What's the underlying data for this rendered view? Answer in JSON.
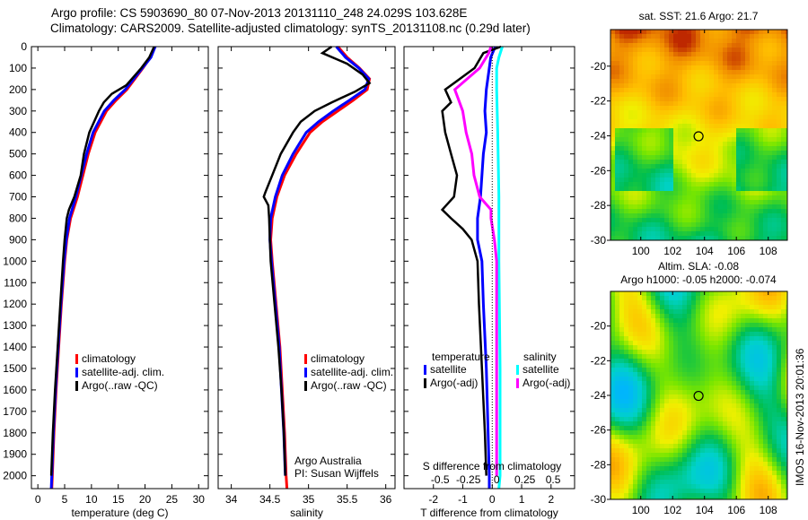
{
  "header": {
    "line1": "Argo profile: CS 5903690_80 07-Nov-2013 20131110_248 24.029S 103.628E",
    "line2": "Climatology: CARS2009. Satellite-adjusted climatology: synTS_20131108.nc (0.29d later)"
  },
  "stamp": "IMOS 16-Nov-2013 20:01:36",
  "colors": {
    "climatology": "#ff0000",
    "satellite": "#0000ff",
    "argo": "#000000",
    "sal_satellite": "#00ffff",
    "sal_argo": "#ff00ff"
  },
  "chart_data": [
    {
      "type": "line",
      "xlabel": "temperature (deg C)",
      "ylabel": "",
      "ylim": [
        0,
        2060
      ],
      "xlim": [
        -1.2,
        31.8
      ],
      "yticks": [
        0,
        100,
        200,
        300,
        400,
        500,
        600,
        700,
        800,
        900,
        1000,
        1100,
        1200,
        1300,
        1400,
        1500,
        1600,
        1700,
        1800,
        1900,
        2000
      ],
      "xticks": [
        0,
        5,
        10,
        15,
        20,
        25,
        30
      ],
      "legend": [
        "climatology",
        "satellite-adj. clim.",
        "Argo(..raw -QC)"
      ],
      "series": [
        {
          "name": "climatology",
          "color": "#ff0000",
          "points": [
            [
              0,
              21.8
            ],
            [
              50,
              21
            ],
            [
              100,
              19.6
            ],
            [
              200,
              16.6
            ],
            [
              250,
              14.6
            ],
            [
              300,
              12.8
            ],
            [
              400,
              10.7
            ],
            [
              500,
              9.4
            ],
            [
              600,
              8.4
            ],
            [
              700,
              7.4
            ],
            [
              800,
              6.1
            ],
            [
              900,
              5.4
            ],
            [
              1000,
              5.0
            ],
            [
              1200,
              4.4
            ],
            [
              1400,
              3.9
            ],
            [
              1600,
              3.4
            ],
            [
              1800,
              3.0
            ],
            [
              2000,
              2.7
            ],
            [
              2060,
              2.6
            ]
          ]
        },
        {
          "name": "satellite-adj. clim.",
          "color": "#0000ff",
          "points": [
            [
              0,
              21.9
            ],
            [
              50,
              21.1
            ],
            [
              100,
              19.5
            ],
            [
              200,
              16.3
            ],
            [
              250,
              14.2
            ],
            [
              300,
              12.4
            ],
            [
              400,
              10.3
            ],
            [
              500,
              9.1
            ],
            [
              600,
              8.1
            ],
            [
              700,
              7.1
            ],
            [
              800,
              5.9
            ],
            [
              900,
              5.3
            ],
            [
              1000,
              4.9
            ],
            [
              1200,
              4.3
            ],
            [
              1400,
              3.8
            ],
            [
              1600,
              3.3
            ],
            [
              1800,
              2.9
            ],
            [
              2000,
              2.6
            ],
            [
              2060,
              2.5
            ]
          ]
        },
        {
          "name": "Argo(..raw -QC)",
          "color": "#000000",
          "points": [
            [
              0,
              21.7
            ],
            [
              50,
              20.8
            ],
            [
              100,
              19.3
            ],
            [
              180,
              16.5
            ],
            [
              220,
              13.8
            ],
            [
              260,
              12.3
            ],
            [
              300,
              11.4
            ],
            [
              400,
              9.6
            ],
            [
              500,
              8.6
            ],
            [
              600,
              8.0
            ],
            [
              700,
              6.8
            ],
            [
              760,
              5.8
            ],
            [
              800,
              5.4
            ],
            [
              900,
              5.0
            ],
            [
              1000,
              4.7
            ],
            [
              1200,
              4.2
            ],
            [
              1400,
              3.7
            ],
            [
              1600,
              3.2
            ],
            [
              1800,
              2.8
            ],
            [
              2000,
              2.5
            ]
          ]
        }
      ]
    },
    {
      "type": "line",
      "xlabel": "salinity",
      "ylim": [
        0,
        2060
      ],
      "xlim": [
        33.83,
        36.12
      ],
      "xticks": [
        34,
        34.5,
        35,
        35.5,
        36
      ],
      "legend": [
        "climatology",
        "satellite-adj. clim.",
        "Argo(..raw -QC)"
      ],
      "annotation": [
        "Argo Australia",
        "PI: Susan Wijffels"
      ],
      "series": [
        {
          "name": "climatology",
          "color": "#ff0000",
          "points": [
            [
              0,
              35.38
            ],
            [
              50,
              35.5
            ],
            [
              100,
              35.66
            ],
            [
              150,
              35.79
            ],
            [
              200,
              35.76
            ],
            [
              250,
              35.58
            ],
            [
              300,
              35.38
            ],
            [
              350,
              35.18
            ],
            [
              400,
              35.02
            ],
            [
              500,
              34.84
            ],
            [
              600,
              34.69
            ],
            [
              700,
              34.59
            ],
            [
              800,
              34.53
            ],
            [
              900,
              34.51
            ],
            [
              1000,
              34.53
            ],
            [
              1200,
              34.58
            ],
            [
              1400,
              34.63
            ],
            [
              1600,
              34.66
            ],
            [
              1800,
              34.69
            ],
            [
              2000,
              34.71
            ],
            [
              2060,
              34.72
            ]
          ]
        },
        {
          "name": "satellite-adj. clim.",
          "color": "#0000ff",
          "points": [
            [
              0,
              35.36
            ],
            [
              50,
              35.48
            ],
            [
              100,
              35.65
            ],
            [
              150,
              35.78
            ],
            [
              200,
              35.73
            ],
            [
              250,
              35.53
            ],
            [
              300,
              35.32
            ],
            [
              350,
              35.13
            ],
            [
              400,
              34.97
            ],
            [
              500,
              34.8
            ],
            [
              600,
              34.66
            ],
            [
              700,
              34.57
            ],
            [
              800,
              34.51
            ],
            [
              900,
              34.5
            ],
            [
              1000,
              34.52
            ],
            [
              1200,
              34.57
            ],
            [
              1400,
              34.62
            ],
            [
              1600,
              34.65
            ],
            [
              1800,
              34.68
            ],
            [
              2000,
              34.7
            ]
          ]
        },
        {
          "name": "Argo(..raw -QC)",
          "color": "#000000",
          "points": [
            [
              0,
              35.3
            ],
            [
              30,
              35.18
            ],
            [
              80,
              35.5
            ],
            [
              130,
              35.7
            ],
            [
              170,
              35.79
            ],
            [
              210,
              35.6
            ],
            [
              260,
              35.3
            ],
            [
              300,
              35.08
            ],
            [
              350,
              34.9
            ],
            [
              400,
              34.8
            ],
            [
              500,
              34.64
            ],
            [
              600,
              34.53
            ],
            [
              680,
              34.44
            ],
            [
              700,
              34.42
            ],
            [
              740,
              34.48
            ],
            [
              800,
              34.49
            ],
            [
              900,
              34.5
            ],
            [
              1000,
              34.51
            ],
            [
              1200,
              34.56
            ],
            [
              1400,
              34.61
            ],
            [
              1600,
              34.65
            ],
            [
              1800,
              34.68
            ],
            [
              2000,
              34.7
            ]
          ]
        }
      ]
    },
    {
      "type": "line",
      "xlabel": "T difference from climatology",
      "x2label": "S difference from climatology",
      "ylim": [
        0,
        2060
      ],
      "xlim": [
        -3,
        2.8
      ],
      "x2lim": [
        -0.82,
        0.69
      ],
      "xticks": [
        -2,
        -1,
        0,
        1,
        2
      ],
      "x2ticks": [
        -0.5,
        -0.25,
        0,
        0.25,
        0.5
      ],
      "legend": {
        "temperature": [
          "satellite",
          "Argo(-adj)"
        ],
        "salinity": [
          "satellite",
          "Argo(-adj)"
        ],
        "temperature_title": "temperature",
        "salinity_title": "salinity"
      },
      "series": [
        {
          "name": "T satellite",
          "axis": "T",
          "color": "#0000ff",
          "points": [
            [
              0,
              0.1
            ],
            [
              50,
              -0.05
            ],
            [
              100,
              -0.1
            ],
            [
              200,
              -0.2
            ],
            [
              300,
              -0.25
            ],
            [
              400,
              -0.2
            ],
            [
              500,
              -0.3
            ],
            [
              600,
              -0.35
            ],
            [
              700,
              -0.4
            ],
            [
              800,
              -0.5
            ],
            [
              900,
              -0.5
            ],
            [
              1000,
              -0.35
            ],
            [
              1200,
              -0.3
            ],
            [
              1500,
              -0.2
            ],
            [
              2000,
              -0.1
            ],
            [
              2060,
              -0.1
            ]
          ]
        },
        {
          "name": "T Argo(-adj)",
          "axis": "T",
          "color": "#000000",
          "points": [
            [
              0,
              0.3
            ],
            [
              30,
              -0.3
            ],
            [
              100,
              -0.6
            ],
            [
              200,
              -1.6
            ],
            [
              260,
              -1.4
            ],
            [
              300,
              -1.7
            ],
            [
              400,
              -1.6
            ],
            [
              500,
              -1.4
            ],
            [
              600,
              -1.2
            ],
            [
              700,
              -1.3
            ],
            [
              760,
              -1.7
            ],
            [
              800,
              -1.4
            ],
            [
              850,
              -1.0
            ],
            [
              900,
              -0.7
            ],
            [
              1000,
              -0.5
            ],
            [
              1200,
              -0.45
            ],
            [
              1500,
              -0.35
            ],
            [
              1800,
              -0.25
            ],
            [
              2000,
              -0.2
            ]
          ]
        },
        {
          "name": "S satellite",
          "axis": "S",
          "color": "#00ffff",
          "points": [
            [
              0,
              0.05
            ],
            [
              50,
              0.02
            ],
            [
              100,
              0.0
            ],
            [
              200,
              0.0
            ],
            [
              400,
              0.01
            ],
            [
              700,
              0.02
            ],
            [
              1000,
              0.02
            ],
            [
              1500,
              0.03
            ],
            [
              2000,
              0.03
            ],
            [
              2060,
              0.02
            ]
          ]
        },
        {
          "name": "S Argo(-adj)",
          "axis": "S",
          "color": "#ff00ff",
          "points": [
            [
              0,
              -0.05
            ],
            [
              30,
              -0.07
            ],
            [
              100,
              -0.15
            ],
            [
              200,
              -0.37
            ],
            [
              300,
              -0.3
            ],
            [
              400,
              -0.27
            ],
            [
              500,
              -0.22
            ],
            [
              600,
              -0.2
            ],
            [
              700,
              -0.15
            ],
            [
              760,
              -0.05
            ],
            [
              800,
              -0.05
            ],
            [
              900,
              -0.02
            ],
            [
              1000,
              0.0
            ],
            [
              1500,
              0.0
            ],
            [
              2000,
              0.0
            ]
          ]
        }
      ]
    },
    {
      "type": "heatmap",
      "title": "sat. SST: 21.6 Argo: 21.7",
      "xlim": [
        98.1,
        109.2
      ],
      "ylim": [
        -30,
        -17.9
      ],
      "xticks": [
        100,
        102,
        104,
        106,
        108
      ],
      "yticks": [
        -20,
        -22,
        -24,
        -26,
        -28,
        -30
      ],
      "marker": [
        103.628,
        -24.029
      ]
    },
    {
      "type": "heatmap",
      "title": "Altim. SLA: -0.08",
      "subtitle": "Argo h1000: -0.05 h2000: -0.074",
      "xlim": [
        98.1,
        109.2
      ],
      "ylim": [
        -30,
        -18.0
      ],
      "xticks": [
        100,
        102,
        104,
        106,
        108
      ],
      "yticks": [
        -20,
        -22,
        -24,
        -26,
        -28,
        -30
      ],
      "marker": [
        103.628,
        -24.029
      ]
    }
  ]
}
